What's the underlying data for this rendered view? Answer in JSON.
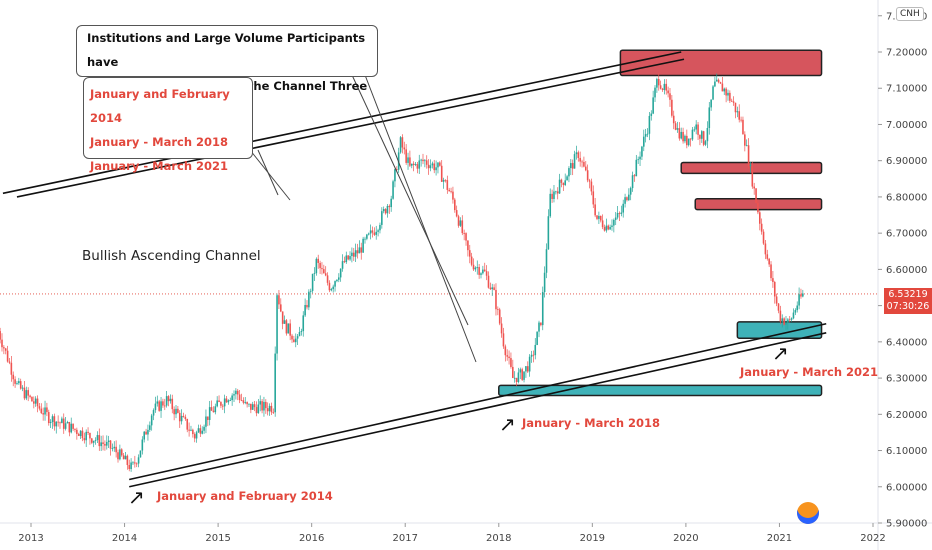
{
  "chart_data": {
    "type": "candlestick",
    "symbol_badge": "CNH",
    "title": "Bullish Ascending Channel",
    "y_axis": {
      "ylim": [
        5.9,
        7.3
      ],
      "ticks": [
        "7.30000",
        "7.20000",
        "7.10000",
        "7.00000",
        "6.90000",
        "6.80000",
        "6.70000",
        "6.60000",
        "6.50000",
        "6.40000",
        "6.30000",
        "6.20000",
        "6.10000",
        "6.00000",
        "5.90000"
      ]
    },
    "x_axis": {
      "xlim": [
        2012.65,
        2022.0
      ],
      "ticks": [
        "2013",
        "2014",
        "2015",
        "2016",
        "2017",
        "2018",
        "2019",
        "2020",
        "2021",
        "2022"
      ]
    },
    "last_price": {
      "value": "6.53219",
      "countdown": "07:30:26",
      "color": "#e2483d"
    },
    "price_path": [
      [
        2012.65,
        6.43
      ],
      [
        2012.85,
        6.28
      ],
      [
        2013.0,
        6.24
      ],
      [
        2013.2,
        6.19
      ],
      [
        2013.45,
        6.16
      ],
      [
        2013.7,
        6.13
      ],
      [
        2013.9,
        6.1
      ],
      [
        2014.08,
        6.05
      ],
      [
        2014.15,
        6.09
      ],
      [
        2014.3,
        6.21
      ],
      [
        2014.45,
        6.24
      ],
      [
        2014.6,
        6.19
      ],
      [
        2014.75,
        6.14
      ],
      [
        2014.9,
        6.2
      ],
      [
        2015.1,
        6.25
      ],
      [
        2015.2,
        6.26
      ],
      [
        2015.3,
        6.22
      ],
      [
        2015.5,
        6.22
      ],
      [
        2015.6,
        6.22
      ],
      [
        2015.62,
        6.55
      ],
      [
        2015.7,
        6.45
      ],
      [
        2015.85,
        6.4
      ],
      [
        2016.0,
        6.56
      ],
      [
        2016.05,
        6.62
      ],
      [
        2016.2,
        6.55
      ],
      [
        2016.35,
        6.62
      ],
      [
        2016.5,
        6.65
      ],
      [
        2016.7,
        6.72
      ],
      [
        2016.85,
        6.8
      ],
      [
        2016.95,
        6.95
      ],
      [
        2017.05,
        6.88
      ],
      [
        2017.2,
        6.9
      ],
      [
        2017.35,
        6.88
      ],
      [
        2017.5,
        6.8
      ],
      [
        2017.7,
        6.62
      ],
      [
        2017.85,
        6.59
      ],
      [
        2017.95,
        6.53
      ],
      [
        2018.05,
        6.4
      ],
      [
        2018.15,
        6.3
      ],
      [
        2018.25,
        6.31
      ],
      [
        2018.35,
        6.35
      ],
      [
        2018.45,
        6.46
      ],
      [
        2018.55,
        6.8
      ],
      [
        2018.7,
        6.85
      ],
      [
        2018.85,
        6.92
      ],
      [
        2018.95,
        6.85
      ],
      [
        2019.05,
        6.74
      ],
      [
        2019.15,
        6.72
      ],
      [
        2019.3,
        6.75
      ],
      [
        2019.45,
        6.87
      ],
      [
        2019.6,
        7.0
      ],
      [
        2019.7,
        7.13
      ],
      [
        2019.8,
        7.08
      ],
      [
        2019.9,
        6.99
      ],
      [
        2020.0,
        6.95
      ],
      [
        2020.1,
        7.0
      ],
      [
        2020.2,
        6.95
      ],
      [
        2020.3,
        7.11
      ],
      [
        2020.4,
        7.1
      ],
      [
        2020.5,
        7.06
      ],
      [
        2020.6,
        7.0
      ],
      [
        2020.7,
        6.86
      ],
      [
        2020.8,
        6.72
      ],
      [
        2020.9,
        6.59
      ],
      [
        2021.0,
        6.47
      ],
      [
        2021.05,
        6.46
      ],
      [
        2021.1,
        6.45
      ],
      [
        2021.2,
        6.51
      ],
      [
        2021.25,
        6.53
      ]
    ],
    "zones": [
      {
        "name": "resistance",
        "color": "#d6555d",
        "x0": 2019.3,
        "x1": 2021.45,
        "y0": 7.135,
        "y1": 7.205
      },
      {
        "name": "resistance",
        "color": "#d6555d",
        "x0": 2019.95,
        "x1": 2021.45,
        "y0": 6.865,
        "y1": 6.895
      },
      {
        "name": "resistance",
        "color": "#d6555d",
        "x0": 2020.1,
        "x1": 2021.45,
        "y0": 6.765,
        "y1": 6.795
      },
      {
        "name": "support",
        "color": "#3fb2b8",
        "x0": 2018.0,
        "x1": 2021.45,
        "y0": 6.252,
        "y1": 6.28
      },
      {
        "name": "support",
        "color": "#3fb2b8",
        "x0": 2020.55,
        "x1": 2021.45,
        "y0": 6.41,
        "y1": 6.455
      }
    ],
    "channel_lines": [
      {
        "x0": 2012.7,
        "y0": 6.81,
        "x1": 2019.95,
        "y1": 7.2
      },
      {
        "x0": 2012.85,
        "y0": 6.8,
        "x1": 2019.98,
        "y1": 7.18
      },
      {
        "x0": 2014.05,
        "y0": 6.02,
        "x1": 2021.5,
        "y1": 6.45
      },
      {
        "x0": 2014.05,
        "y0": 6.0,
        "x1": 2021.5,
        "y1": 6.425
      }
    ],
    "annotations": {
      "callout_line1": "Institutions and Large Volume Participants have",
      "callout_line2": "bought at the bottom of the Channel Three times.",
      "callout_dates": [
        "January and February 2014",
        "January - March 2018",
        "January - March 2021"
      ],
      "label_2014": "January and February 2014",
      "label_2018": "January - March 2018",
      "label_2021": "January - March 2021",
      "arrow_symbol": "↗"
    }
  }
}
